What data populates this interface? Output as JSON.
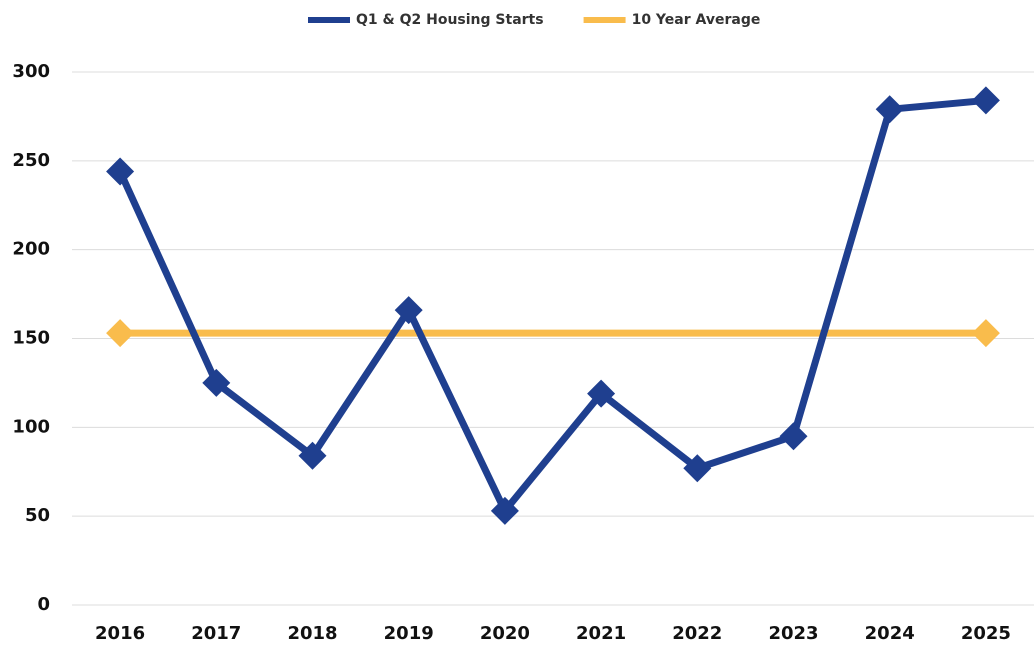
{
  "chart_data": {
    "type": "line",
    "categories": [
      "2016",
      "2017",
      "2018",
      "2019",
      "2020",
      "2021",
      "2022",
      "2023",
      "2024",
      "2025"
    ],
    "series": [
      {
        "name": "Q1 & Q2 Housing Starts",
        "color": "#1f3f8f",
        "values": [
          244,
          125,
          84,
          166,
          53,
          119,
          77,
          95,
          279,
          284
        ]
      },
      {
        "name": "10 Year Average",
        "color": "#f9bc4c",
        "values": [
          153,
          153,
          153,
          153,
          153,
          153,
          153,
          153,
          153,
          153
        ]
      }
    ],
    "ylim": [
      0,
      300
    ],
    "yticks": [
      0,
      50,
      100,
      150,
      200,
      250,
      300
    ],
    "grid": true,
    "legend": "top"
  }
}
